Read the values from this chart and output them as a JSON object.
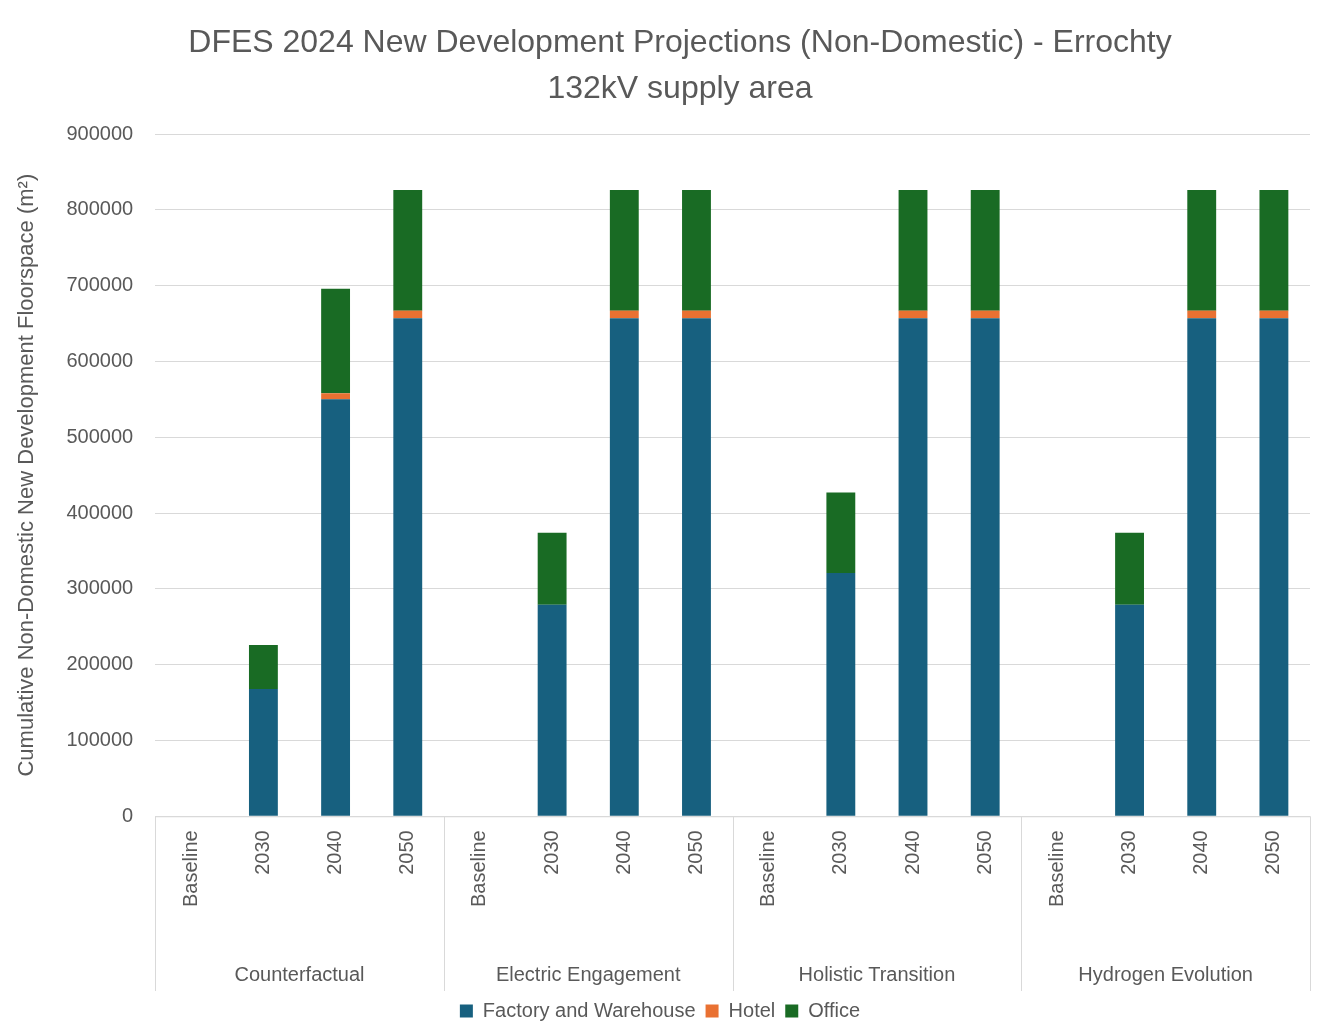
{
  "chart_data": {
    "type": "bar",
    "title": "DFES 2024 New Development Projections (Non-Domestic) - Errochty 132kV supply area",
    "ylabel": "Cumulative Non-Domestic New Development Floorspace (m²)",
    "categories": [
      "Baseline",
      "2030",
      "2040",
      "2050",
      "Baseline",
      "2030",
      "2040",
      "2050",
      "Baseline",
      "2030",
      "2040",
      "2050",
      "Baseline",
      "2030",
      "2040",
      "2050"
    ],
    "annotations": [
      "Counterfactual",
      "Electric Engagement",
      "Holistic Transition",
      "Hydrogen Evolution"
    ],
    "stacked": true,
    "series": [
      {
        "name": "Factory and Warehouse",
        "color": "#17607f",
        "values": [
          0,
          168000,
          550000,
          657000,
          0,
          279000,
          657000,
          657000,
          0,
          321000,
          657000,
          657000,
          0,
          279000,
          657000,
          657000
        ]
      },
      {
        "name": "Hotel",
        "color": "#e97132",
        "values": [
          0,
          0,
          8000,
          10000,
          0,
          0,
          10000,
          10000,
          0,
          0,
          10000,
          10000,
          0,
          0,
          10000,
          10000
        ]
      },
      {
        "name": "Office",
        "color": "#196b24",
        "values": [
          0,
          58000,
          138000,
          159000,
          0,
          95000,
          159000,
          159000,
          0,
          106000,
          159000,
          159000,
          0,
          95000,
          159000,
          159000
        ]
      }
    ],
    "ylim": [
      0,
      900000
    ],
    "yticks": [
      0,
      100000,
      200000,
      300000,
      400000,
      500000,
      600000,
      700000,
      800000,
      900000
    ],
    "grid": "y",
    "legend": "bottom"
  }
}
